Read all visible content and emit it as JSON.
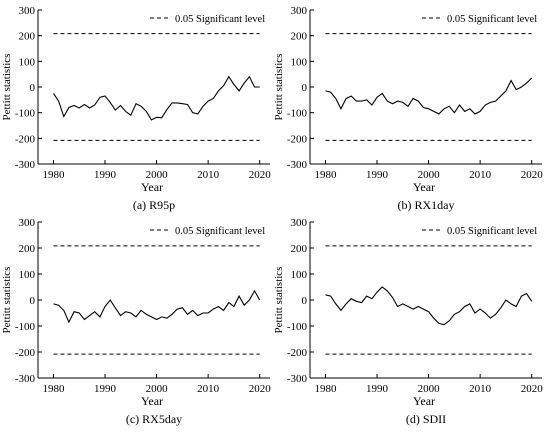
{
  "chart_data": [
    {
      "type": "line",
      "caption": "(a) R95p",
      "xlabel": "Year",
      "ylabel": "Pettitt statistics",
      "xlim": [
        1977,
        2022
      ],
      "ylim": [
        -300,
        300
      ],
      "xticks": [
        1980,
        1990,
        2000,
        2010,
        2020
      ],
      "yticks": [
        -300,
        -200,
        -100,
        0,
        100,
        200,
        300
      ],
      "legend": "0.05 Significant level",
      "significance": [
        208,
        -208
      ],
      "x": [
        1980,
        1981,
        1982,
        1983,
        1984,
        1985,
        1986,
        1987,
        1988,
        1989,
        1990,
        1991,
        1992,
        1993,
        1994,
        1995,
        1996,
        1997,
        1998,
        1999,
        2000,
        2001,
        2002,
        2003,
        2004,
        2005,
        2006,
        2007,
        2008,
        2009,
        2010,
        2011,
        2012,
        2013,
        2014,
        2015,
        2016,
        2017,
        2018,
        2019,
        2020
      ],
      "values": [
        -25,
        -55,
        -115,
        -80,
        -72,
        -82,
        -68,
        -82,
        -70,
        -40,
        -35,
        -60,
        -90,
        -72,
        -95,
        -110,
        -65,
        -75,
        -95,
        -128,
        -118,
        -120,
        -88,
        -62,
        -62,
        -65,
        -68,
        -100,
        -105,
        -75,
        -55,
        -45,
        -15,
        5,
        40,
        10,
        -15,
        15,
        40,
        0,
        0
      ]
    },
    {
      "type": "line",
      "caption": "(b) RX1day",
      "xlabel": "Year",
      "ylabel": "Pettitt statistics",
      "xlim": [
        1977,
        2022
      ],
      "ylim": [
        -300,
        300
      ],
      "xticks": [
        1980,
        1990,
        2000,
        2010,
        2020
      ],
      "yticks": [
        -300,
        -200,
        -100,
        0,
        100,
        200,
        300
      ],
      "legend": "0.05 Significant level",
      "significance": [
        208,
        -208
      ],
      "x": [
        1980,
        1981,
        1982,
        1983,
        1984,
        1985,
        1986,
        1987,
        1988,
        1989,
        1990,
        1991,
        1992,
        1993,
        1994,
        1995,
        1996,
        1997,
        1998,
        1999,
        2000,
        2001,
        2002,
        2003,
        2004,
        2005,
        2006,
        2007,
        2008,
        2009,
        2010,
        2011,
        2012,
        2013,
        2014,
        2015,
        2016,
        2017,
        2018,
        2019,
        2020
      ],
      "values": [
        -15,
        -20,
        -45,
        -85,
        -45,
        -35,
        -55,
        -55,
        -50,
        -70,
        -40,
        -25,
        -55,
        -65,
        -55,
        -60,
        -75,
        -45,
        -55,
        -80,
        -85,
        -95,
        -105,
        -85,
        -75,
        -100,
        -70,
        -95,
        -85,
        -105,
        -95,
        -70,
        -60,
        -55,
        -35,
        -15,
        25,
        -10,
        0,
        15,
        35
      ]
    },
    {
      "type": "line",
      "caption": "(c) RX5day",
      "xlabel": "Year",
      "ylabel": "Pettitt statistics",
      "xlim": [
        1977,
        2022
      ],
      "ylim": [
        -300,
        300
      ],
      "xticks": [
        1980,
        1990,
        2000,
        2010,
        2020
      ],
      "yticks": [
        -300,
        -200,
        -100,
        0,
        100,
        200,
        300
      ],
      "legend": "0.05 Significant level",
      "significance": [
        208,
        -208
      ],
      "x": [
        1980,
        1981,
        1982,
        1983,
        1984,
        1985,
        1986,
        1987,
        1988,
        1989,
        1990,
        1991,
        1992,
        1993,
        1994,
        1995,
        1996,
        1997,
        1998,
        1999,
        2000,
        2001,
        2002,
        2003,
        2004,
        2005,
        2006,
        2007,
        2008,
        2009,
        2010,
        2011,
        2012,
        2013,
        2014,
        2015,
        2016,
        2017,
        2018,
        2019,
        2020
      ],
      "values": [
        -15,
        -20,
        -40,
        -85,
        -45,
        -50,
        -75,
        -60,
        -45,
        -65,
        -25,
        0,
        -30,
        -60,
        -45,
        -50,
        -65,
        -40,
        -55,
        -65,
        -75,
        -65,
        -70,
        -55,
        -35,
        -30,
        -55,
        -40,
        -60,
        -50,
        -50,
        -35,
        -25,
        -40,
        -10,
        -25,
        15,
        -20,
        0,
        35,
        0
      ]
    },
    {
      "type": "line",
      "caption": "(d) SDII",
      "xlabel": "Year",
      "ylabel": "Pettitt statistics",
      "xlim": [
        1977,
        2022
      ],
      "ylim": [
        -300,
        300
      ],
      "xticks": [
        1980,
        1990,
        2000,
        2010,
        2020
      ],
      "yticks": [
        -300,
        -200,
        -100,
        0,
        100,
        200,
        300
      ],
      "legend": "0.05 Significant level",
      "significance": [
        208,
        -208
      ],
      "x": [
        1980,
        1981,
        1982,
        1983,
        1984,
        1985,
        1986,
        1987,
        1988,
        1989,
        1990,
        1991,
        1992,
        1993,
        1994,
        1995,
        1996,
        1997,
        1998,
        1999,
        2000,
        2001,
        2002,
        2003,
        2004,
        2005,
        2006,
        2007,
        2008,
        2009,
        2010,
        2011,
        2012,
        2013,
        2014,
        2015,
        2016,
        2017,
        2018,
        2019,
        2020
      ],
      "values": [
        20,
        15,
        -15,
        -40,
        -15,
        5,
        -5,
        -10,
        15,
        5,
        30,
        50,
        35,
        10,
        -25,
        -15,
        -25,
        -35,
        -25,
        -35,
        -45,
        -70,
        -90,
        -95,
        -80,
        -55,
        -45,
        -25,
        -15,
        -50,
        -35,
        -50,
        -70,
        -55,
        -30,
        0,
        -15,
        -25,
        15,
        25,
        -5
      ]
    }
  ]
}
